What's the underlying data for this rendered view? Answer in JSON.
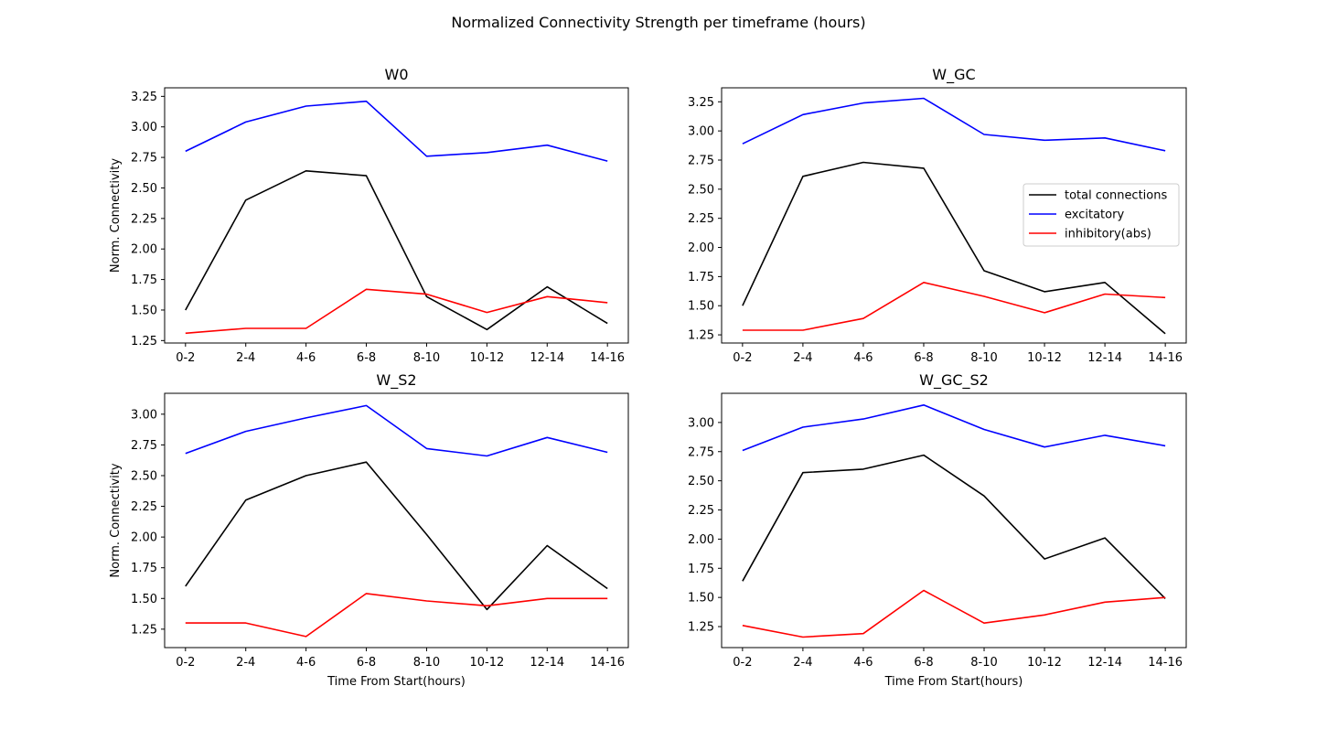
{
  "suptitle": "Normalized Connectivity Strength per timeframe (hours)",
  "legend": {
    "placement": "center-right",
    "in_panel": "W_GC",
    "entries": [
      {
        "label": "total connections",
        "color": "#000000"
      },
      {
        "label": "excitatory",
        "color": "#0000ff"
      },
      {
        "label": "inhibitory(abs)",
        "color": "#ff0000"
      }
    ]
  },
  "chart_data": [
    {
      "type": "line",
      "title": "W0",
      "xlabel": "",
      "ylabel": "Norm. Connectivity",
      "categories": [
        "0-2",
        "2-4",
        "4-6",
        "6-8",
        "8-10",
        "10-12",
        "12-14",
        "14-16"
      ],
      "ylim": [
        1.23,
        3.32
      ],
      "yticks": [
        "1.25",
        "1.50",
        "1.75",
        "2.00",
        "2.25",
        "2.50",
        "2.75",
        "3.00",
        "3.25"
      ],
      "grid": false,
      "series": [
        {
          "name": "total connections",
          "color": "#000000",
          "values": [
            1.5,
            2.4,
            2.64,
            2.6,
            1.61,
            1.34,
            1.69,
            1.39
          ]
        },
        {
          "name": "excitatory",
          "color": "#0000ff",
          "values": [
            2.8,
            3.04,
            3.17,
            3.21,
            2.76,
            2.79,
            2.85,
            2.72
          ]
        },
        {
          "name": "inhibitory(abs)",
          "color": "#ff0000",
          "values": [
            1.31,
            1.35,
            1.35,
            1.67,
            1.63,
            1.48,
            1.61,
            1.56
          ]
        }
      ]
    },
    {
      "type": "line",
      "title": "W_GC",
      "xlabel": "",
      "ylabel": "",
      "categories": [
        "0-2",
        "2-4",
        "4-6",
        "6-8",
        "8-10",
        "10-12",
        "12-14",
        "14-16"
      ],
      "ylim": [
        1.18,
        3.37
      ],
      "yticks": [
        "1.25",
        "1.50",
        "1.75",
        "2.00",
        "2.25",
        "2.50",
        "2.75",
        "3.00",
        "3.25"
      ],
      "grid": false,
      "series": [
        {
          "name": "total connections",
          "color": "#000000",
          "values": [
            1.5,
            2.61,
            2.73,
            2.68,
            1.8,
            1.62,
            1.7,
            1.26
          ]
        },
        {
          "name": "excitatory",
          "color": "#0000ff",
          "values": [
            2.89,
            3.14,
            3.24,
            3.28,
            2.97,
            2.92,
            2.94,
            2.83
          ]
        },
        {
          "name": "inhibitory(abs)",
          "color": "#ff0000",
          "values": [
            1.29,
            1.29,
            1.39,
            1.7,
            1.58,
            1.44,
            1.6,
            1.57
          ]
        }
      ]
    },
    {
      "type": "line",
      "title": "W_S2",
      "xlabel": "Time From Start(hours)",
      "ylabel": "Norm. Connectivity",
      "categories": [
        "0-2",
        "2-4",
        "4-6",
        "6-8",
        "8-10",
        "10-12",
        "12-14",
        "14-16"
      ],
      "ylim": [
        1.1,
        3.17
      ],
      "yticks": [
        "1.25",
        "1.50",
        "1.75",
        "2.00",
        "2.25",
        "2.50",
        "2.75",
        "3.00"
      ],
      "grid": false,
      "series": [
        {
          "name": "total connections",
          "color": "#000000",
          "values": [
            1.6,
            2.3,
            2.5,
            2.61,
            2.02,
            1.41,
            1.93,
            1.58
          ]
        },
        {
          "name": "excitatory",
          "color": "#0000ff",
          "values": [
            2.68,
            2.86,
            2.97,
            3.07,
            2.72,
            2.66,
            2.81,
            2.69
          ]
        },
        {
          "name": "inhibitory(abs)",
          "color": "#ff0000",
          "values": [
            1.3,
            1.3,
            1.19,
            1.54,
            1.48,
            1.44,
            1.5,
            1.5
          ]
        }
      ]
    },
    {
      "type": "line",
      "title": "W_GC_S2",
      "xlabel": "Time From Start(hours)",
      "ylabel": "",
      "categories": [
        "0-2",
        "2-4",
        "4-6",
        "6-8",
        "8-10",
        "10-12",
        "12-14",
        "14-16"
      ],
      "ylim": [
        1.07,
        3.25
      ],
      "yticks": [
        "1.25",
        "1.50",
        "1.75",
        "2.00",
        "2.25",
        "2.50",
        "2.75",
        "3.00"
      ],
      "grid": false,
      "series": [
        {
          "name": "total connections",
          "color": "#000000",
          "values": [
            1.64,
            2.57,
            2.6,
            2.72,
            2.37,
            1.83,
            2.01,
            1.49
          ]
        },
        {
          "name": "excitatory",
          "color": "#0000ff",
          "values": [
            2.76,
            2.96,
            3.03,
            3.15,
            2.94,
            2.79,
            2.89,
            2.8
          ]
        },
        {
          "name": "inhibitory(abs)",
          "color": "#ff0000",
          "values": [
            1.26,
            1.16,
            1.19,
            1.56,
            1.28,
            1.35,
            1.46,
            1.5
          ]
        }
      ]
    }
  ]
}
